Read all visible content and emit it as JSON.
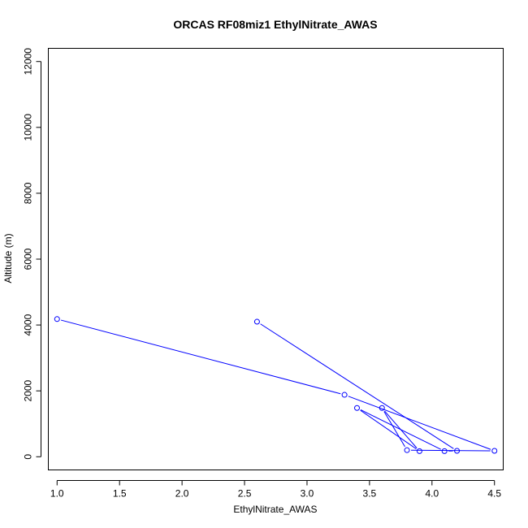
{
  "chart_data": {
    "type": "line",
    "title": "ORCAS RF08miz1 EthylNitrate_AWAS",
    "xlabel": "EthylNitrate_AWAS",
    "ylabel": "Altitude (m)",
    "xlim": [
      0.93,
      4.57
    ],
    "ylim": [
      -400,
      12400
    ],
    "xticks": [
      1.0,
      1.5,
      2.0,
      2.5,
      3.0,
      3.5,
      4.0,
      4.5
    ],
    "xtick_labels": [
      "1.0",
      "1.5",
      "2.0",
      "2.5",
      "3.0",
      "3.5",
      "4.0",
      "4.5"
    ],
    "yticks": [
      0,
      2000,
      4000,
      6000,
      8000,
      10000,
      12000
    ],
    "ytick_labels": [
      "0",
      "2000",
      "4000",
      "6000",
      "8000",
      "10000",
      "12000"
    ],
    "grid": false,
    "series": [
      {
        "color": "#0000ff",
        "marker": "open-circle",
        "points": [
          {
            "x": 2.6,
            "y": 4100
          },
          {
            "x": 4.2,
            "y": 180
          },
          {
            "x": 4.1,
            "y": 170
          },
          {
            "x": 3.4,
            "y": 1480
          },
          {
            "x": 3.9,
            "y": 170
          },
          {
            "x": 3.6,
            "y": 1480
          },
          {
            "x": 3.8,
            "y": 200
          },
          {
            "x": 4.5,
            "y": 180
          },
          {
            "x": 3.3,
            "y": 1880
          },
          {
            "x": 1.0,
            "y": 4180
          }
        ]
      }
    ]
  }
}
